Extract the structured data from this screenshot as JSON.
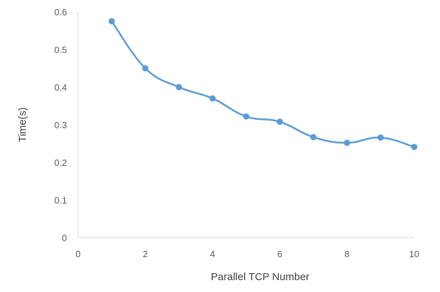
{
  "chart_data": {
    "type": "line",
    "smooth": true,
    "title": "",
    "xlabel": "Parallel TCP Number",
    "ylabel": "Time(s)",
    "xlim": [
      0,
      10
    ],
    "ylim": [
      0,
      0.6
    ],
    "x_ticks": [
      "0",
      "2",
      "4",
      "6",
      "8",
      "10"
    ],
    "y_ticks": [
      "0",
      "0.1",
      "0.2",
      "0.3",
      "0.4",
      "0.5",
      "0.6"
    ],
    "grid": false,
    "legend": "none",
    "series": [
      {
        "color": "#5b9bd5",
        "x": [
          1,
          2,
          3,
          4,
          5,
          6,
          7,
          8,
          9,
          10
        ],
        "y": [
          0.575,
          0.45,
          0.4,
          0.37,
          0.322,
          0.308,
          0.267,
          0.252,
          0.266,
          0.241
        ]
      }
    ]
  }
}
